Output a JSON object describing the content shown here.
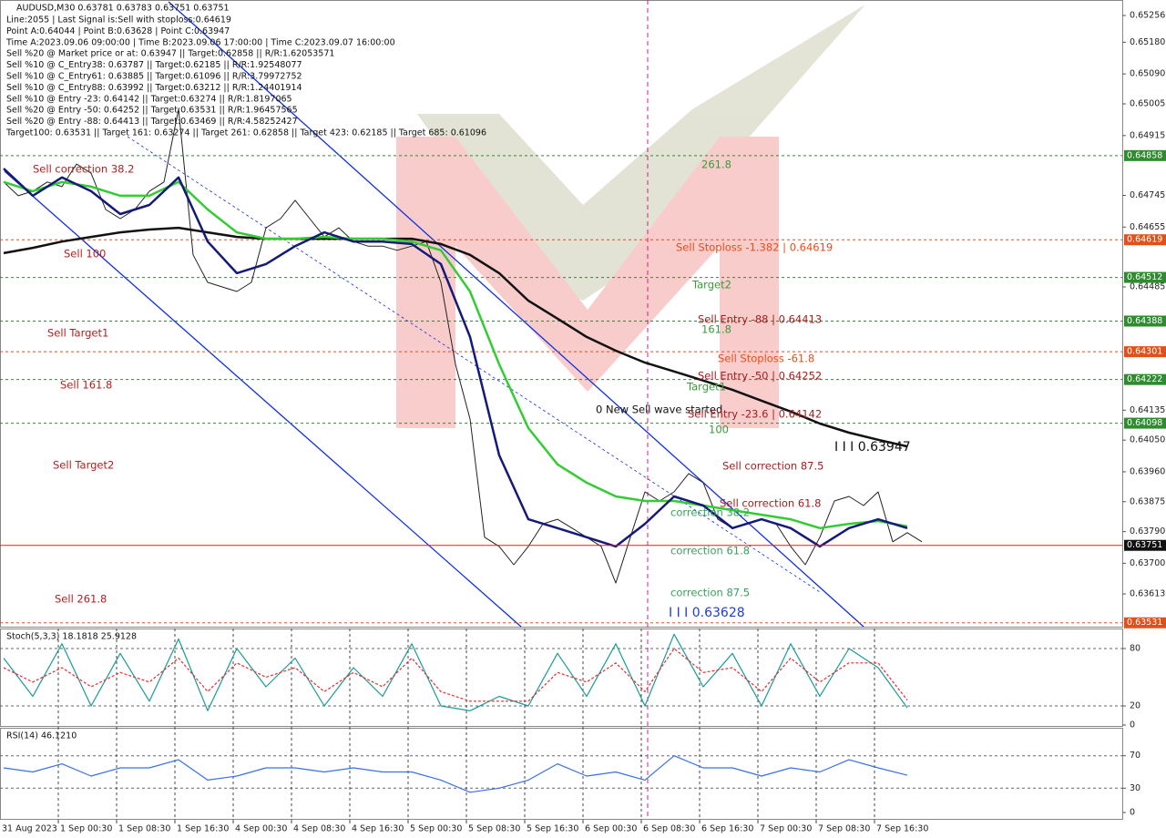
{
  "chart_data": [
    {
      "type": "line",
      "title": "AUDUSD,M30 0.63781 0.63783 0.63751 0.63751",
      "info_lines": [
        "Line:2055 | Last Signal is:Sell with stoploss:0.64619",
        "Point A:0.64044 | Point B:0.63628 | Point C:0.63947",
        "Time A:2023.09.06 09:00:00 | Time B:2023.09.06 17:00:00 | Time C:2023.09.07 16:00:00",
        "Sell %20 @ Market price or at: 0.63947 || Target:0.62858 || R/R:1.62053571",
        "Sell %10 @ C_Entry38: 0.63787 || Target:0.62185 || R/R:1.92548077",
        "Sell %10 @ C_Entry61: 0.63885 || Target:0.61096 || R/R:3.79972752",
        "Sell %10 @ C_Entry88: 0.63992 || Target:0.63212 || R/R:1.24401914",
        "Sell %10 @ Entry -23: 0.64142 || Target:0.63274 || R/R:1.8197065",
        "Sell %20 @ Entry -50: 0.64252 || Target:0.63531 || R/R:1.96457565",
        "Sell %20 @ Entry -88: 0.64413 || Target:0.63469 || R/R:4.58252427",
        "Target100: 0.63531 || Target 161: 0.63274 || Target 261: 0.62858 || Target 423: 0.62185 || Target 685: 0.61096"
      ],
      "x_labels": [
        "31 Aug 2023",
        "1 Sep 00:30",
        "1 Sep 08:30",
        "1 Sep 16:30",
        "4 Sep 00:30",
        "4 Sep 08:30",
        "4 Sep 16:30",
        "5 Sep 00:30",
        "5 Sep 08:30",
        "5 Sep 16:30",
        "6 Sep 00:30",
        "6 Sep 08:30",
        "6 Sep 16:30",
        "7 Sep 00:30",
        "7 Sep 08:30",
        "7 Sep 16:30"
      ],
      "ylim": [
        0.6352,
        0.653
      ],
      "yticks": [
        0.65256,
        {
          "value": 0.6518,
          "label": "0.65180"
        },
        {
          "value": 0.6509,
          "label": "0.65090"
        },
        0.65005,
        0.64915,
        0.64745,
        0.64655,
        0.64485,
        0.64135,
        {
          "value": 0.6405,
          "label": "0.64050"
        },
        {
          "value": 0.6396,
          "label": "0.63960"
        },
        0.63875,
        {
          "value": 0.6379,
          "label": "0.63790"
        },
        {
          "value": 0.637,
          "label": "0.63700"
        },
        0.63613
      ],
      "levels": [
        {
          "value": 0.64858,
          "label": "0.64858",
          "color": "#2e8b2e"
        },
        {
          "value": 0.64619,
          "label": "0.64619",
          "color": "#e0501a"
        },
        {
          "value": 0.64512,
          "label": "0.64512",
          "color": "#2e8b2e"
        },
        {
          "value": 0.64388,
          "label": "0.64388",
          "color": "#2e8b2e"
        },
        {
          "value": 0.64301,
          "label": "0.64301",
          "color": "#e0501a"
        },
        {
          "value": 0.64222,
          "label": "0.64222",
          "color": "#2e8b2e"
        },
        {
          "value": 0.64098,
          "label": "0.64098",
          "color": "#2e8b2e"
        },
        {
          "value": 0.63531,
          "label": "0.63531",
          "color": "#e0501a"
        }
      ],
      "current_price": {
        "value": 0.63751,
        "label": "0.63751",
        "color": "#e02020"
      },
      "annotations": [
        "Sell Stoploss -1.382 | 0.64619",
        "Target2",
        "Sell Entry -88 | 0.64413",
        "161.8",
        "Sell Stoploss -61.8",
        "Sell Entry -50 | 0.64252",
        "Target1",
        "0 New Sell wave started",
        "Sell Entry -23.6 | 0.64142",
        "100",
        "261.8",
        "I I I 0.63947",
        "Sell correction 87.5",
        "Sell correction 61.8",
        "correction 38.2",
        "correction 61.8",
        "correction 87.5",
        "I I I 0.63628",
        "Sell correction 38.2",
        "Sell 100",
        "Sell Target1",
        "Sell 161.8",
        "Sell Target2",
        "Sell 261.8"
      ],
      "series": [
        {
          "color": "#222222",
          "values": [
            0.64783,
            0.64744,
            0.64757,
            0.64783,
            0.6477,
            0.64834,
            0.64808,
            0.64705,
            0.64679,
            0.64705,
            0.64757,
            0.64783,
            0.6499,
            0.64576,
            0.64498,
            0.64485,
            0.64472,
            0.64498,
            0.64653,
            0.64679,
            0.64731,
            0.64679,
            0.64627,
            0.64653,
            0.64614,
            0.64601,
            0.64601,
            0.64589,
            0.64601,
            0.64614,
            0.64498,
            0.64265,
            0.6411,
            0.63774,
            0.63748,
            0.63696,
            0.63748,
            0.63812,
            0.63825,
            0.638,
            0.63774,
            0.63748,
            0.63644,
            0.63774,
            0.63903,
            0.63877,
            0.63903,
            0.63955,
            0.63929,
            0.63825,
            0.638,
            0.63812,
            0.63825,
            0.63812,
            0.63748,
            0.63696,
            0.63774,
            0.63877,
            0.6389,
            0.63864,
            0.63903,
            0.63761,
            0.63787,
            0.63761
          ]
        },
        {
          "color": "#111111",
          "values": [
            0.64581,
            0.64596,
            0.64614,
            0.64627,
            0.6464,
            0.64648,
            0.64653,
            0.6464,
            0.64627,
            0.64622,
            0.64622,
            0.64622,
            0.64622,
            0.64622,
            0.64622,
            0.64607,
            0.64576,
            0.64524,
            0.64446,
            0.64395,
            0.64343,
            0.64304,
            0.6427,
            0.64245,
            0.64219,
            0.64193,
            0.64162,
            0.64131,
            0.64097,
            0.64071,
            0.64051,
            0.64032
          ]
        },
        {
          "color": "#33cc33",
          "values": [
            0.64783,
            0.64757,
            0.64783,
            0.6477,
            0.64744,
            0.64744,
            0.64783,
            0.64705,
            0.6464,
            0.64622,
            0.64622,
            0.64627,
            0.64622,
            0.64622,
            0.64614,
            0.64589,
            0.64472,
            0.64265,
            0.64084,
            0.63981,
            0.63929,
            0.6389,
            0.63877,
            0.63877,
            0.63864,
            0.63851,
            0.63838,
            0.63825,
            0.638,
            0.63812,
            0.6382,
            0.63805
          ]
        },
        {
          "color": "#141a78",
          "values": [
            0.64821,
            0.64744,
            0.64796,
            0.64757,
            0.64692,
            0.64718,
            0.64796,
            0.64614,
            0.64524,
            0.6455,
            0.64601,
            0.6464,
            0.64614,
            0.64614,
            0.64607,
            0.6455,
            0.64343,
            0.64007,
            0.63825,
            0.638,
            0.63774,
            0.63748,
            0.63812,
            0.6389,
            0.63864,
            0.638,
            0.63825,
            0.638,
            0.63748,
            0.638,
            0.63825,
            0.638
          ]
        }
      ]
    },
    {
      "type": "line",
      "title": "Stoch(5,3,3) 18.1818 25.9128",
      "ylim": [
        0,
        100
      ],
      "yticks": [
        80,
        20,
        0
      ],
      "series": [
        {
          "color": "#1a9a9a",
          "values": [
            70,
            30,
            85,
            20,
            75,
            25,
            90,
            15,
            80,
            40,
            70,
            20,
            60,
            30,
            85,
            20,
            15,
            30,
            20,
            75,
            30,
            85,
            20,
            95,
            40,
            75,
            20,
            85,
            30,
            80,
            60,
            18
          ]
        },
        {
          "color": "#e03030",
          "dashed": true,
          "values": [
            60,
            45,
            60,
            40,
            55,
            45,
            70,
            35,
            65,
            50,
            60,
            35,
            55,
            40,
            70,
            35,
            25,
            25,
            25,
            55,
            45,
            65,
            35,
            80,
            55,
            60,
            35,
            70,
            45,
            65,
            65,
            26
          ]
        }
      ]
    },
    {
      "type": "line",
      "title": "RSI(14) 46.1210",
      "ylim": [
        0,
        100
      ],
      "yticks": [
        70,
        30,
        0
      ],
      "series": [
        {
          "color": "#3a70e0",
          "values": [
            55,
            50,
            60,
            45,
            55,
            55,
            65,
            40,
            45,
            55,
            55,
            50,
            55,
            50,
            50,
            40,
            25,
            30,
            40,
            60,
            45,
            50,
            40,
            70,
            55,
            55,
            45,
            55,
            50,
            65,
            55,
            46
          ]
        }
      ]
    }
  ]
}
